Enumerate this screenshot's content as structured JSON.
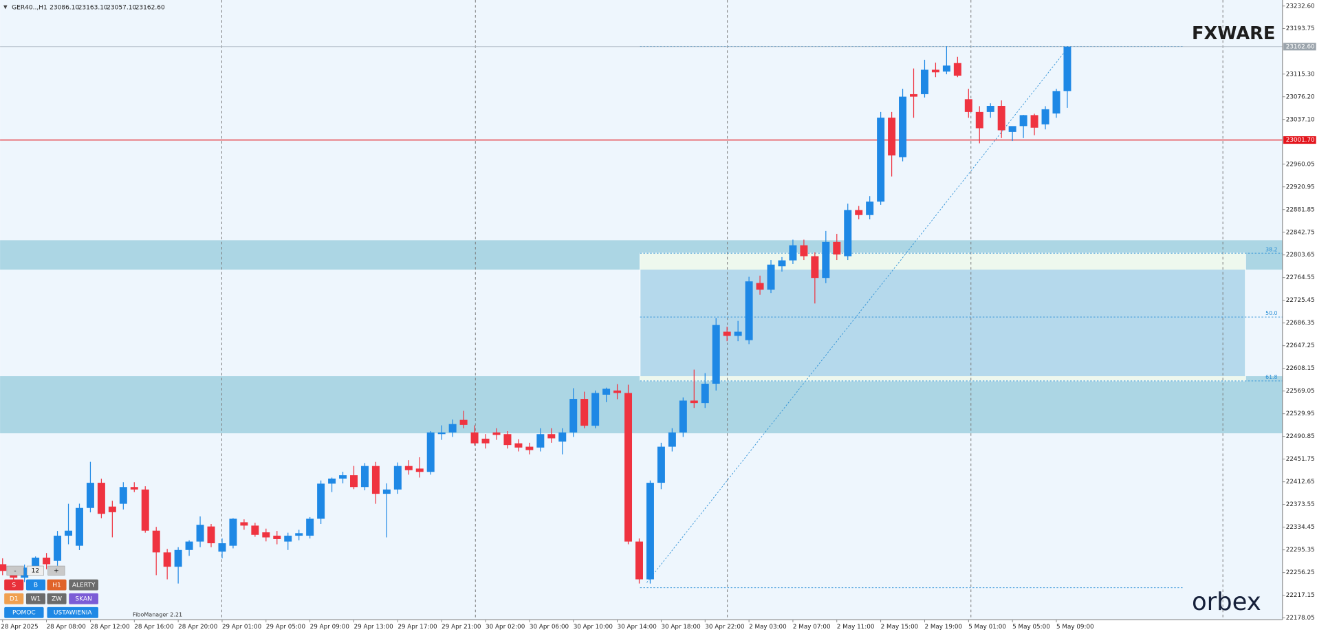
{
  "chart_data": {
    "type": "candlestick",
    "title": "GER40..,H1",
    "ohlc_text": [
      "23086.10",
      "23163.10",
      "23057.10",
      "23162.60"
    ],
    "categories": [
      "28 Apr 2025",
      null,
      null,
      null,
      "28 Apr 08:00",
      null,
      null,
      null,
      "28 Apr 12:00",
      null,
      null,
      null,
      "28 Apr 16:00",
      null,
      null,
      null,
      "28 Apr 20:00",
      null,
      null,
      null,
      "29 Apr 01:00",
      null,
      null,
      null,
      "29 Apr 05:00",
      null,
      null,
      null,
      "29 Apr 09:00",
      null,
      null,
      null,
      "29 Apr 13:00",
      null,
      null,
      null,
      "29 Apr 17:00",
      null,
      null,
      null,
      "29 Apr 21:00",
      null,
      null,
      null,
      "30 Apr 02:00",
      null,
      null,
      null,
      "30 Apr 06:00",
      null,
      null,
      null,
      "30 Apr 10:00",
      null,
      null,
      null,
      "30 Apr 14:00",
      null,
      null,
      null,
      "30 Apr 18:00",
      null,
      null,
      null,
      "30 Apr 22:00",
      null,
      null,
      null,
      "2 May 03:00",
      null,
      null,
      null,
      "2 May 07:00",
      null,
      null,
      null,
      "2 May 11:00",
      null,
      null,
      null,
      "2 May 15:00",
      null,
      null,
      null,
      "2 May 19:00",
      null,
      null,
      null,
      "5 May 01:00",
      null,
      null,
      null,
      "5 May 05:00",
      null,
      null,
      null,
      "5 May 09:00",
      null
    ],
    "ohlc": [
      [
        22270.7,
        22280.8,
        22251.8,
        22259.1
      ],
      [
        22259.1,
        22266.3,
        22240.0,
        22247.5
      ],
      [
        22247.5,
        22270.0,
        22240.0,
        22264.8
      ],
      [
        22264.8,
        22284.0,
        22255.0,
        22282.0
      ],
      [
        22282.0,
        22290.0,
        22262.0,
        22270.7
      ],
      [
        22276.4,
        22328.0,
        22268.0,
        22319.8
      ],
      [
        22319.8,
        22374.8,
        22305.0,
        22328.5
      ],
      [
        22302.5,
        22375.0,
        22295.0,
        22367.6
      ],
      [
        22367.6,
        22447.1,
        22360.0,
        22411.0
      ],
      [
        22411.0,
        22418.0,
        22350.0,
        22357.5
      ],
      [
        22370.0,
        22380.0,
        22317.0,
        22360.3
      ],
      [
        22374.8,
        22412.0,
        22365.0,
        22403.7
      ],
      [
        22403.7,
        22412.0,
        22395.0,
        22399.4
      ],
      [
        22399.4,
        22405.0,
        22325.0,
        22328.5
      ],
      [
        22328.5,
        22335.0,
        22251.8,
        22291.0
      ],
      [
        22291.0,
        22297.0,
        22244.6,
        22266.3
      ],
      [
        22266.3,
        22300.0,
        22237.4,
        22295.2
      ],
      [
        22295.2,
        22312.0,
        22285.0,
        22309.7
      ],
      [
        22309.7,
        22353.0,
        22300.0,
        22338.6
      ],
      [
        22335.7,
        22340.0,
        22300.0,
        22306.8
      ],
      [
        22292.3,
        22315.0,
        22280.8,
        22306.8
      ],
      [
        22302.5,
        22350.0,
        22298.0,
        22349.0
      ],
      [
        22343.0,
        22348.0,
        22330.0,
        22337.2
      ],
      [
        22337.2,
        22342.0,
        22318.0,
        22321.3
      ],
      [
        22325.6,
        22332.0,
        22310.0,
        22316.9
      ],
      [
        22319.8,
        22328.0,
        22305.0,
        22314.0
      ],
      [
        22309.7,
        22325.0,
        22295.2,
        22319.8
      ],
      [
        22319.8,
        22330.0,
        22312.0,
        22324.2
      ],
      [
        22319.8,
        22352.0,
        22315.0,
        22349.0
      ],
      [
        22349.0,
        22415.0,
        22340.0,
        22409.5
      ],
      [
        22409.5,
        22420.0,
        22395.0,
        22418.2
      ],
      [
        22418.2,
        22430.0,
        22410.0,
        22424.0
      ],
      [
        22424.0,
        22440.0,
        22400.0,
        22403.7
      ],
      [
        22403.7,
        22445.0,
        22398.0,
        22439.9
      ],
      [
        22439.9,
        22447.0,
        22374.8,
        22392.0
      ],
      [
        22392.0,
        22410.0,
        22316.9,
        22399.4
      ],
      [
        22399.4,
        22446.0,
        22392.0,
        22439.9
      ],
      [
        22439.9,
        22450.0,
        22425.0,
        22432.7
      ],
      [
        22435.5,
        22455.0,
        22420.0,
        22429.8
      ],
      [
        22429.8,
        22500.0,
        22425.0,
        22497.8
      ],
      [
        22494.9,
        22510.0,
        22485.0,
        22497.8
      ],
      [
        22497.8,
        22520.0,
        22490.0,
        22512.2
      ],
      [
        22519.4,
        22535.0,
        22505.0,
        22510.8
      ],
      [
        22497.8,
        22510.0,
        22475.0,
        22479.0
      ],
      [
        22487.0,
        22495.0,
        22470.0,
        22479.0
      ],
      [
        22497.8,
        22505.0,
        22485.0,
        22493.4
      ],
      [
        22494.9,
        22500.0,
        22470.0,
        22476.1
      ],
      [
        22479.0,
        22486.0,
        22465.0,
        22471.7
      ],
      [
        22473.2,
        22480.0,
        22460.0,
        22467.4
      ],
      [
        22471.7,
        22505.0,
        22465.0,
        22494.9
      ],
      [
        22494.9,
        22505.0,
        22480.0,
        22487.6
      ],
      [
        22481.9,
        22505.0,
        22460.0,
        22497.8
      ],
      [
        22497.8,
        22574.0,
        22490.0,
        22555.6
      ],
      [
        22555.6,
        22568.0,
        22505.0,
        22509.3
      ],
      [
        22509.3,
        22570.0,
        22505.0,
        22565.7
      ],
      [
        22562.8,
        22575.0,
        22550.0,
        22573.0
      ],
      [
        22570.0,
        22581.0,
        22555.0,
        22565.7
      ],
      [
        22565.7,
        22580.0,
        22305.0,
        22309.7
      ],
      [
        22309.7,
        22315.0,
        22237.4,
        22244.6
      ],
      [
        22244.6,
        22415.0,
        22237.4,
        22411.0
      ],
      [
        22411.0,
        22480.0,
        22400.0,
        22473.2
      ],
      [
        22473.2,
        22505.0,
        22465.0,
        22497.8
      ],
      [
        22497.8,
        22558.0,
        22490.0,
        22552.7
      ],
      [
        22552.7,
        22606.0,
        22540.0,
        22548.4
      ],
      [
        22548.4,
        22600.0,
        22540.0,
        22581.7
      ],
      [
        22581.7,
        22695.0,
        22570.0,
        22682.9
      ],
      [
        22671.3,
        22680.0,
        22655.0,
        22664.1
      ],
      [
        22664.1,
        22690.0,
        22655.0,
        22671.3
      ],
      [
        22656.8,
        22766.0,
        22650.0,
        22758.1
      ],
      [
        22755.3,
        22768.0,
        22735.0,
        22743.7
      ],
      [
        22743.7,
        22795.0,
        22738.0,
        22787.0
      ],
      [
        22784.1,
        22800.0,
        22775.0,
        22794.3
      ],
      [
        22794.3,
        22830.0,
        22788.0,
        22820.3
      ],
      [
        22820.3,
        22830.0,
        22795.0,
        22801.5
      ],
      [
        22801.5,
        22808.0,
        22720.0,
        22764.0
      ],
      [
        22764.0,
        22845.0,
        22755.0,
        22826.1
      ],
      [
        22826.1,
        22840.0,
        22795.0,
        22804.4
      ],
      [
        22801.5,
        22892.0,
        22795.0,
        22881.1
      ],
      [
        22881.1,
        22888.0,
        22865.0,
        22872.4
      ],
      [
        22872.4,
        22905.0,
        22865.0,
        22895.5
      ],
      [
        22895.5,
        23050.0,
        22890.0,
        23040.2
      ],
      [
        23040.2,
        23050.0,
        22938.9,
        22975.1
      ],
      [
        22972.2,
        23090.0,
        22965.0,
        23076.4
      ],
      [
        23080.7,
        23125.0,
        23040.0,
        23076.4
      ],
      [
        23080.7,
        23140.0,
        23075.0,
        23122.8
      ],
      [
        23122.8,
        23135.0,
        23110.0,
        23118.3
      ],
      [
        23119.7,
        23163.0,
        23115.0,
        23130.0
      ],
      [
        23134.3,
        23145.0,
        23110.0,
        23112.6
      ],
      [
        23072.0,
        23090.0,
        23040.0,
        23050.0
      ],
      [
        23050.0,
        23060.0,
        22996.0,
        23022.0
      ],
      [
        23050.0,
        23065.0,
        23040.0,
        23060.5
      ],
      [
        23060.5,
        23070.0,
        23005.0,
        23018.5
      ],
      [
        23015.6,
        23025.0,
        23000.0,
        23025.7
      ],
      [
        23025.7,
        23045.0,
        23005.0,
        23044.6
      ],
      [
        23044.6,
        23047.0,
        23010.0,
        23022.9
      ],
      [
        23028.7,
        23060.0,
        23020.0,
        23054.7
      ],
      [
        23047.4,
        23090.0,
        23040.0,
        23086.1
      ],
      [
        23086.1,
        23163.1,
        23057.1,
        23162.6
      ]
    ],
    "up_color": "#1e88e5",
    "down_color": "#ef3340",
    "ylim": [
      22175,
      23243
    ],
    "yticks": [
      {
        "value": 23232.6,
        "label": "23232.60"
      },
      23193.75,
      {
        "value": 23115.3,
        "label": "23115.30"
      },
      {
        "value": 23076.2,
        "label": "23076.20"
      },
      {
        "value": 23037.1,
        "label": "23037.10"
      },
      22960.05,
      22920.95,
      22881.85,
      22842.75,
      22803.65,
      22764.55,
      22725.45,
      22686.35,
      22647.25,
      22608.15,
      22569.05,
      22529.95,
      22490.85,
      22451.75,
      22412.65,
      22373.55,
      22334.45,
      22295.35,
      22256.25,
      22217.15,
      22178.05
    ],
    "close_label": "23162.60",
    "hline": {
      "value": 23001.7,
      "label": "23001.70",
      "color": "#e3141c"
    },
    "zones": [
      [
        22778.3,
        22829.0
      ],
      [
        22496.3,
        22594.7
      ]
    ],
    "zone_color": "#acd6e4",
    "fibo_range": [
      22230.2,
      23163.1
    ],
    "fibo_levels": [
      38.2,
      {
        "value": 50,
        "label": "50.0"
      },
      61.8
    ],
    "fibo_color": "#2a8fd6"
  },
  "toolbar": {
    "stepper": [
      "-",
      "12",
      "+"
    ],
    "buttons": [
      [
        "S",
        "B",
        "H1",
        "ALERTY"
      ],
      [
        "D1",
        "W1",
        "ZW",
        "SKAN"
      ],
      [
        "POMOC",
        "USTAWIENIA"
      ]
    ],
    "indicator": "FiboManager 2.21"
  },
  "logos": [
    "FXWARE",
    "orbex"
  ]
}
